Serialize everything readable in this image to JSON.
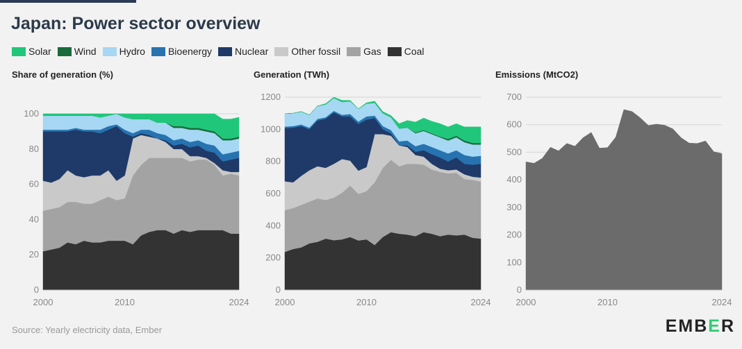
{
  "header": {
    "title": "Japan: Power sector overview"
  },
  "legend": [
    {
      "label": "Solar",
      "color": "#20c77a"
    },
    {
      "label": "Wind",
      "color": "#1a6b3c"
    },
    {
      "label": "Hydro",
      "color": "#a6d7f3"
    },
    {
      "label": "Bioenergy",
      "color": "#2773b0"
    },
    {
      "label": "Nuclear",
      "color": "#1f3a68"
    },
    {
      "label": "Other fossil",
      "color": "#c9c9c9"
    },
    {
      "label": "Gas",
      "color": "#a3a3a3"
    },
    {
      "label": "Coal",
      "color": "#333333"
    }
  ],
  "footer": {
    "source": "Source: Yearly electricity data, Ember",
    "logo_pre": "EMB",
    "logo_accent": "E",
    "logo_post": "R"
  },
  "chart_data": [
    {
      "type": "area",
      "title": "Share of generation (%)",
      "x": [
        2000,
        2001,
        2002,
        2003,
        2004,
        2005,
        2006,
        2007,
        2008,
        2009,
        2010,
        2011,
        2012,
        2013,
        2014,
        2015,
        2016,
        2017,
        2018,
        2019,
        2020,
        2021,
        2022,
        2023,
        2024
      ],
      "xticks": [
        2000,
        2010,
        2024
      ],
      "ylim": [
        0,
        100
      ],
      "yticks": [
        0,
        20,
        40,
        60,
        80,
        100
      ],
      "series": [
        {
          "name": "Coal",
          "values": [
            22,
            23,
            24,
            27,
            26,
            28,
            27,
            27,
            28,
            28,
            28,
            26,
            31,
            33,
            34,
            34,
            32,
            34,
            33,
            34,
            34,
            34,
            34,
            32,
            32
          ]
        },
        {
          "name": "Gas",
          "values": [
            23,
            23,
            23,
            23,
            24,
            21,
            22,
            24,
            25,
            23,
            24,
            39,
            40,
            42,
            41,
            41,
            43,
            41,
            40,
            40,
            40,
            37,
            31,
            34,
            33
          ]
        },
        {
          "name": "Other fossil",
          "values": [
            17,
            15,
            16,
            18,
            15,
            15,
            16,
            14,
            15,
            11,
            13,
            21,
            17,
            12,
            11,
            9,
            5,
            5,
            3,
            2,
            1,
            1,
            3,
            1,
            2
          ]
        },
        {
          "name": "Nuclear",
          "values": [
            28,
            29,
            27,
            22,
            26,
            26,
            25,
            24,
            23,
            31,
            24,
            1,
            1,
            1,
            0,
            1,
            2,
            3,
            5,
            6,
            4,
            6,
            5,
            7,
            8
          ]
        },
        {
          "name": "Bioenergy",
          "values": [
            1,
            1,
            1,
            1,
            1,
            1,
            1,
            2,
            2,
            1,
            2,
            2,
            2,
            3,
            3,
            3,
            3,
            3,
            3,
            3,
            4,
            4,
            4,
            4,
            4
          ]
        },
        {
          "name": "Hydro",
          "values": [
            8,
            8,
            8,
            8,
            7,
            8,
            8,
            7,
            6,
            6,
            7,
            8,
            6,
            6,
            6,
            7,
            7,
            6,
            7,
            6,
            7,
            7,
            8,
            7,
            7
          ]
        },
        {
          "name": "Wind",
          "values": [
            0,
            0,
            0,
            0,
            0,
            0,
            0,
            0,
            0,
            0,
            0,
            0,
            0,
            0,
            0,
            0,
            1,
            1,
            1,
            1,
            1,
            1,
            1,
            1,
            1
          ]
        },
        {
          "name": "Solar",
          "values": [
            1,
            1,
            1,
            1,
            1,
            1,
            1,
            2,
            1,
            0,
            2,
            3,
            3,
            3,
            5,
            5,
            7,
            7,
            8,
            8,
            9,
            10,
            11,
            11,
            11
          ]
        }
      ]
    },
    {
      "type": "area",
      "title": "Generation (TWh)",
      "x": [
        2000,
        2001,
        2002,
        2003,
        2004,
        2005,
        2006,
        2007,
        2008,
        2009,
        2010,
        2011,
        2012,
        2013,
        2014,
        2015,
        2016,
        2017,
        2018,
        2019,
        2020,
        2021,
        2022,
        2023,
        2024
      ],
      "xticks": [
        2000,
        2010,
        2024
      ],
      "ylim": [
        0,
        1200
      ],
      "yticks": [
        0,
        200,
        400,
        600,
        800,
        1000,
        1200
      ],
      "series": [
        {
          "name": "Coal",
          "values": [
            237,
            255,
            265,
            290,
            300,
            320,
            310,
            315,
            330,
            308,
            315,
            280,
            330,
            360,
            350,
            345,
            335,
            360,
            350,
            335,
            345,
            340,
            345,
            325,
            320
          ]
        },
        {
          "name": "Gas",
          "values": [
            260,
            255,
            265,
            260,
            270,
            240,
            265,
            290,
            320,
            290,
            300,
            390,
            430,
            450,
            420,
            440,
            450,
            420,
            400,
            400,
            380,
            390,
            345,
            360,
            355
          ]
        },
        {
          "name": "Other fossil",
          "values": [
            180,
            160,
            180,
            195,
            200,
            200,
            210,
            210,
            155,
            145,
            150,
            300,
            210,
            150,
            130,
            105,
            55,
            50,
            35,
            20,
            20,
            20,
            30,
            20,
            25
          ]
        },
        {
          "name": "Nuclear",
          "values": [
            330,
            340,
            310,
            255,
            285,
            305,
            320,
            265,
            275,
            290,
            295,
            100,
            30,
            15,
            0,
            10,
            20,
            40,
            60,
            70,
            55,
            75,
            65,
            75,
            85
          ]
        },
        {
          "name": "Bioenergy",
          "values": [
            10,
            10,
            10,
            10,
            10,
            10,
            10,
            10,
            15,
            15,
            20,
            15,
            20,
            20,
            25,
            30,
            35,
            40,
            45,
            45,
            50,
            45,
            55,
            50,
            50
          ]
        },
        {
          "name": "Hydro",
          "values": [
            80,
            80,
            80,
            80,
            80,
            80,
            80,
            80,
            80,
            80,
            80,
            80,
            80,
            80,
            80,
            80,
            80,
            80,
            80,
            80,
            80,
            80,
            80,
            75,
            70
          ]
        },
        {
          "name": "Wind",
          "values": [
            0,
            0,
            0,
            0,
            0,
            0,
            0,
            0,
            0,
            0,
            0,
            0,
            0,
            0,
            0,
            0,
            5,
            5,
            5,
            5,
            10,
            10,
            10,
            10,
            10
          ]
        },
        {
          "name": "Solar",
          "values": [
            0,
            0,
            0,
            0,
            0,
            5,
            5,
            10,
            5,
            0,
            5,
            10,
            10,
            10,
            30,
            45,
            65,
            75,
            75,
            80,
            75,
            75,
            85,
            100,
            100
          ]
        }
      ]
    },
    {
      "type": "area",
      "title": "Emissions (MtCO2)",
      "x": [
        2000,
        2001,
        2002,
        2003,
        2004,
        2005,
        2006,
        2007,
        2008,
        2009,
        2010,
        2011,
        2012,
        2013,
        2014,
        2015,
        2016,
        2017,
        2018,
        2019,
        2020,
        2021,
        2022,
        2023,
        2024
      ],
      "xticks": [
        2000,
        2010,
        2024
      ],
      "ylim": [
        0,
        700
      ],
      "yticks": [
        0,
        100,
        200,
        300,
        400,
        500,
        600,
        700
      ],
      "series": [
        {
          "name": "Emissions",
          "values": [
            465,
            460,
            478,
            518,
            505,
            532,
            522,
            553,
            572,
            515,
            517,
            555,
            655,
            648,
            625,
            597,
            602,
            598,
            585,
            553,
            533,
            532,
            541,
            502,
            495
          ]
        }
      ],
      "color": "#6b6b6b"
    }
  ]
}
